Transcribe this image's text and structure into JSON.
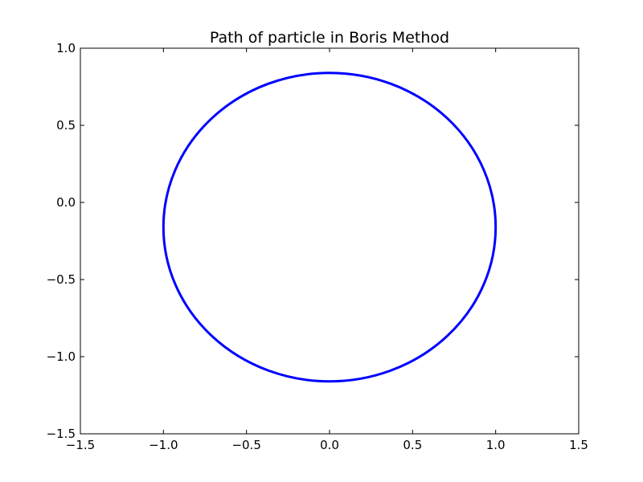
{
  "chart_data": {
    "type": "line",
    "title": "Path of particle in Boris Method",
    "xlabel": "",
    "ylabel": "",
    "xlim": [
      -1.5,
      1.5
    ],
    "ylim": [
      -1.5,
      1.0
    ],
    "x_ticks": [
      -1.5,
      -1.0,
      -0.5,
      0.0,
      0.5,
      1.0,
      1.5
    ],
    "x_tick_labels": [
      "−1.5",
      "−1.0",
      "−0.5",
      "0.0",
      "0.5",
      "1.0",
      "1.5"
    ],
    "y_ticks": [
      -1.5,
      -1.0,
      -0.5,
      0.0,
      0.5,
      1.0
    ],
    "y_tick_labels": [
      "−1.5",
      "−1.0",
      "−0.5",
      "0.0",
      "0.5",
      "1.0"
    ],
    "grid": false,
    "legend": "none",
    "series": [
      {
        "color": "#0000ff",
        "shape": "circle",
        "center": [
          0.0,
          -0.16
        ],
        "radius_x": 1.0,
        "radius_y": 1.0
      }
    ]
  },
  "colors": {
    "line": "#0000ff",
    "axes": "#000000",
    "background": "#ffffff"
  }
}
